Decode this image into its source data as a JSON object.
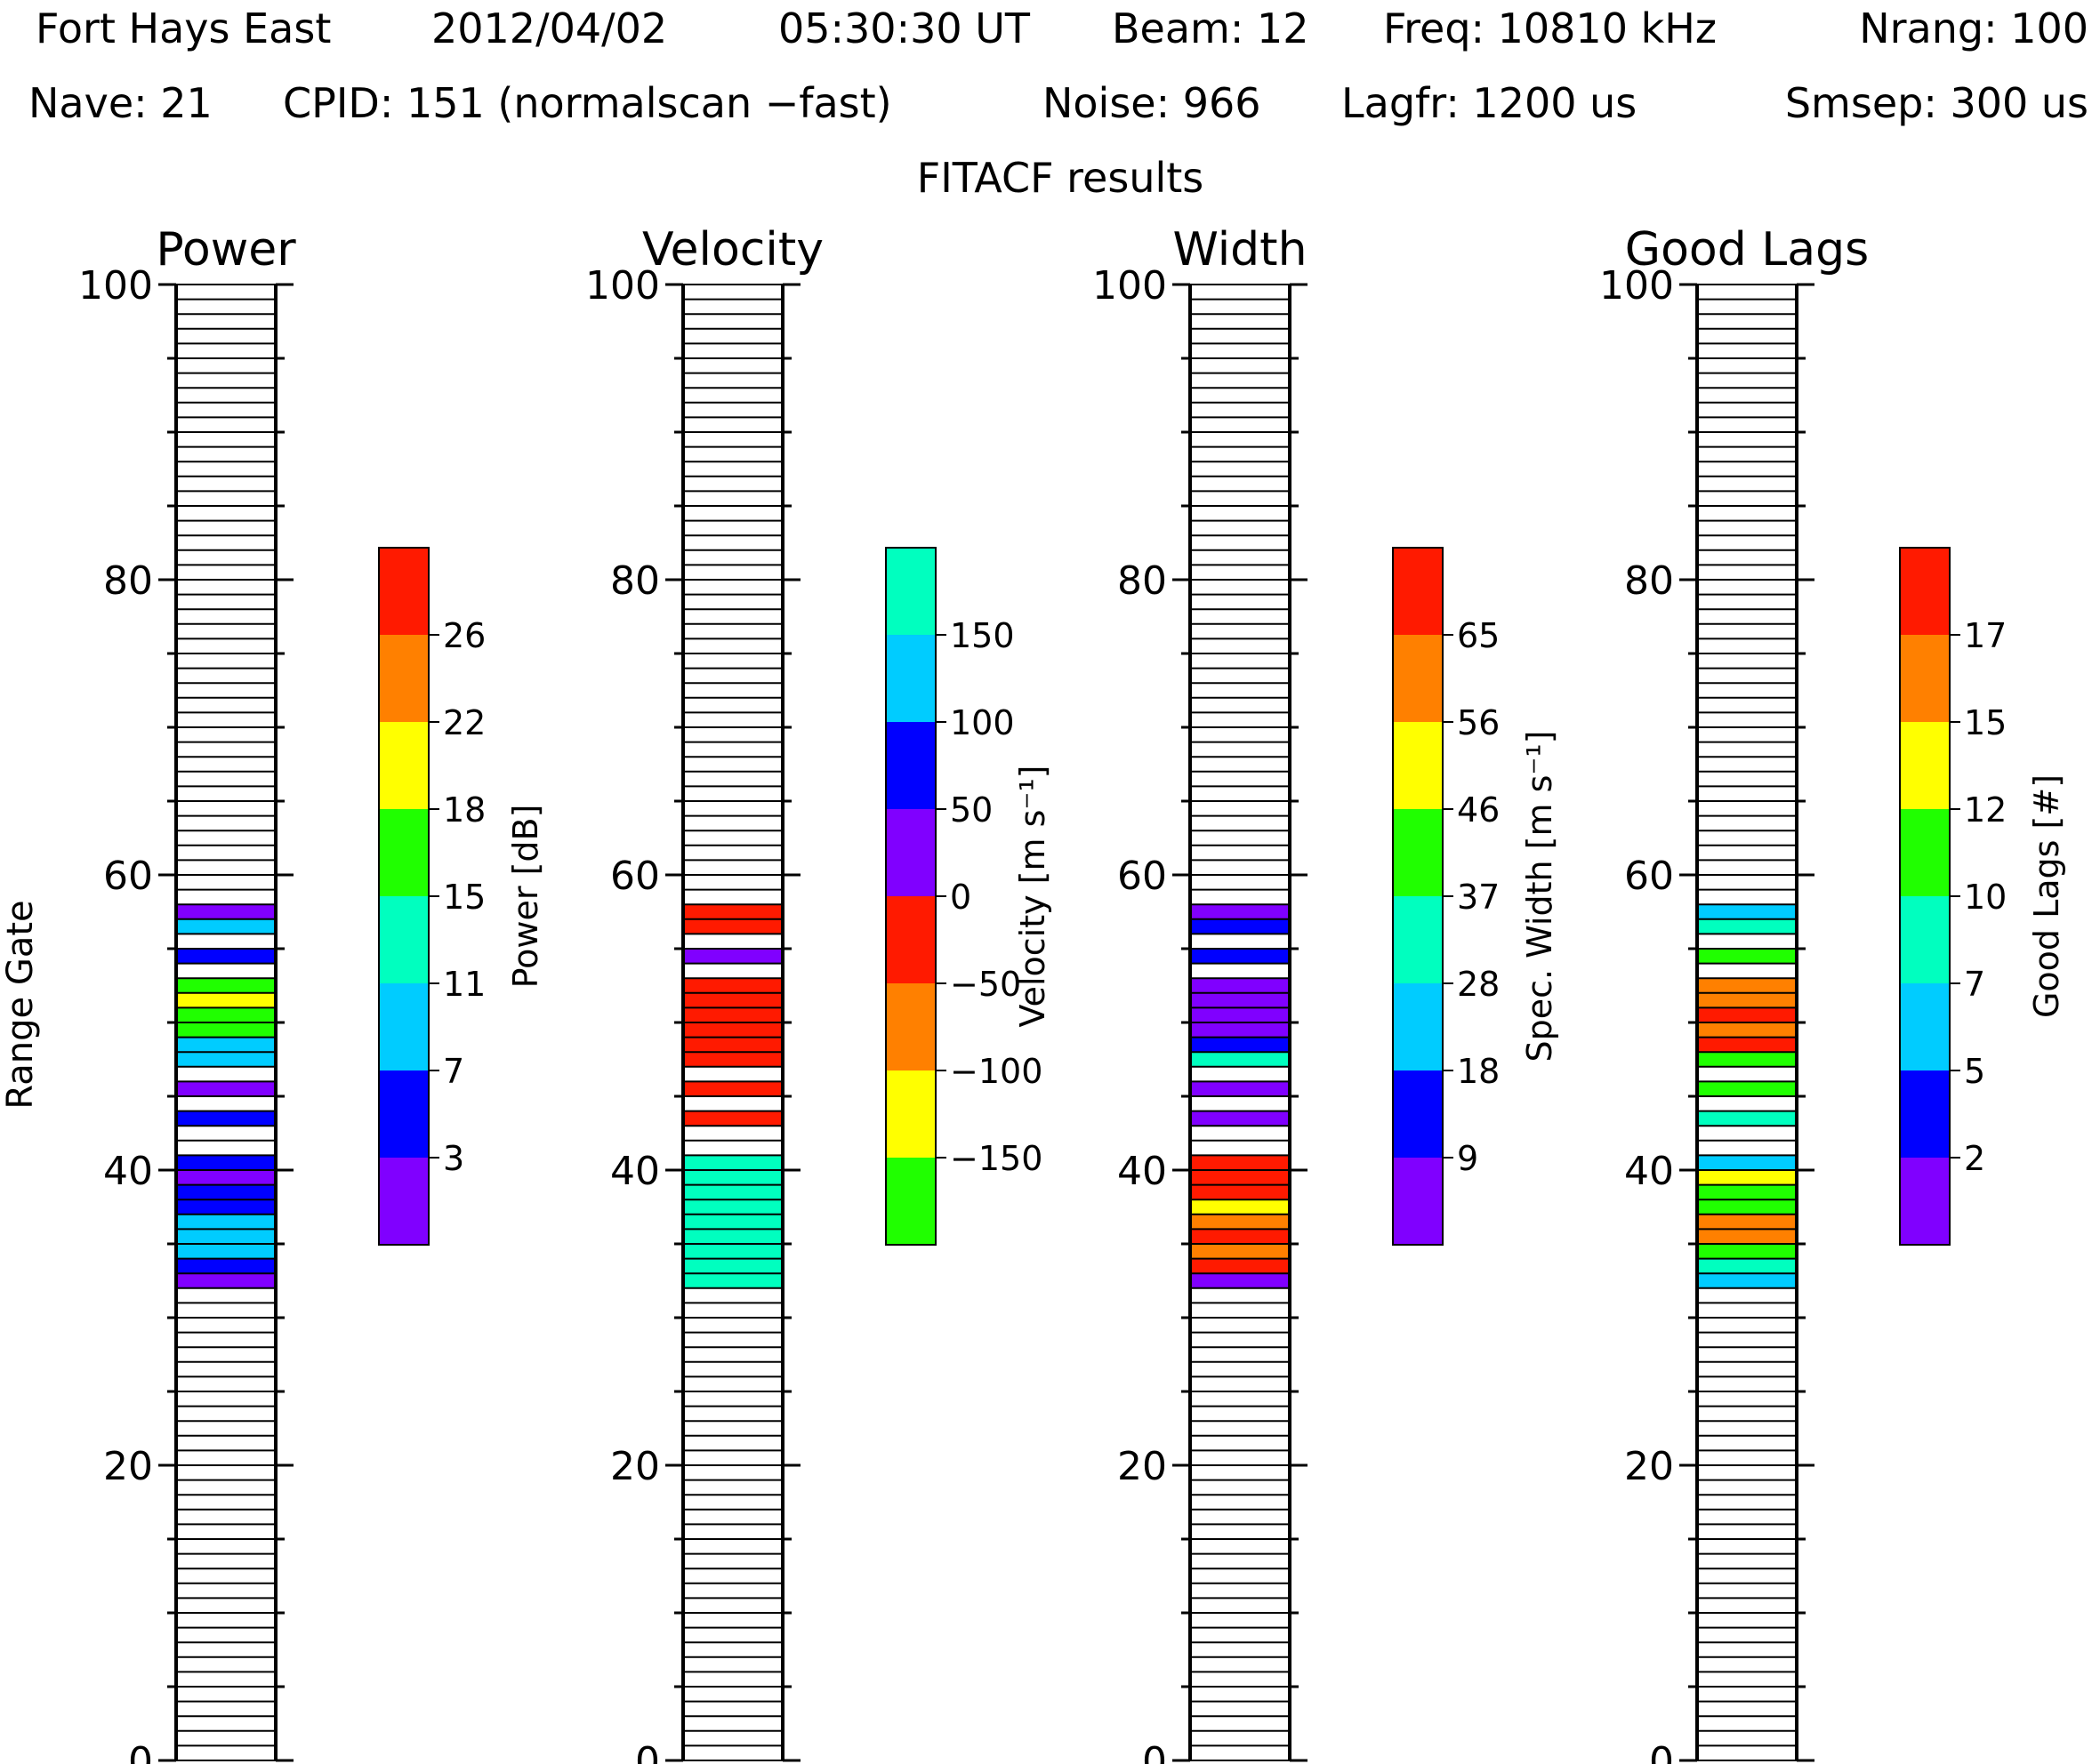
{
  "header": {
    "line1": {
      "station": "Fort Hays East",
      "date": "2012/04/02",
      "time": "05:30:30 UT",
      "beam": "Beam: 12",
      "freq": "Freq: 10810 kHz",
      "nrang": "Nrang: 100"
    },
    "line2": {
      "nave": "Nave: 21",
      "cpid": "CPID: 151 (normalscan −fast)",
      "noise": "Noise: 966",
      "lagfr": "Lagfr: 1200 us",
      "smsep": "Smsep: 300 us"
    },
    "line3": "FITACF results"
  },
  "y_axis_label": "Range Gate",
  "y_tick_labels": [
    "0",
    "20",
    "40",
    "60",
    "80",
    "100"
  ],
  "colors": {
    "c0": "#8000ff",
    "c1": "#0000ff",
    "c2": "#00ccff",
    "c3": "#00ffbf",
    "c4": "#20ff00",
    "c5": "#ffff00",
    "c6": "#ff8000",
    "c7": "#ff1a00"
  },
  "chart_data": [
    {
      "type": "heatmap",
      "title": "Power",
      "ylim": [
        0,
        100
      ],
      "colorbar": {
        "label": "Power [dB]",
        "tick_labels": [
          "3",
          "7",
          "11",
          "15",
          "18",
          "22",
          "26"
        ],
        "colors": [
          "#8000ff",
          "#0000ff",
          "#00ccff",
          "#00ffbf",
          "#20ff00",
          "#ffff00",
          "#ff8000",
          "#ff1a00"
        ]
      },
      "gates": [
        {
          "gate": 33,
          "level": 0
        },
        {
          "gate": 34,
          "level": 1
        },
        {
          "gate": 35,
          "level": 2
        },
        {
          "gate": 36,
          "level": 2
        },
        {
          "gate": 37,
          "level": 2
        },
        {
          "gate": 38,
          "level": 1
        },
        {
          "gate": 39,
          "level": 1
        },
        {
          "gate": 40,
          "level": 0
        },
        {
          "gate": 41,
          "level": 1
        },
        {
          "gate": 44,
          "level": 1
        },
        {
          "gate": 46,
          "level": 0
        },
        {
          "gate": 48,
          "level": 2
        },
        {
          "gate": 49,
          "level": 2
        },
        {
          "gate": 50,
          "level": 4
        },
        {
          "gate": 51,
          "level": 4
        },
        {
          "gate": 52,
          "level": 5
        },
        {
          "gate": 53,
          "level": 4
        },
        {
          "gate": 55,
          "level": 1
        },
        {
          "gate": 57,
          "level": 2
        },
        {
          "gate": 58,
          "level": 0
        }
      ]
    },
    {
      "type": "heatmap",
      "title": "Velocity",
      "ylim": [
        0,
        100
      ],
      "colorbar": {
        "label": "Velocity [m s⁻¹]",
        "tick_labels": [
          "−150",
          "−100",
          "−50",
          "0",
          "50",
          "100",
          "150"
        ],
        "colors": [
          "#20ff00",
          "#ffff00",
          "#ff8000",
          "#ff1a00",
          "#8000ff",
          "#0000ff",
          "#00ccff",
          "#00ffbf"
        ]
      },
      "gates": [
        {
          "gate": 33,
          "level": 7
        },
        {
          "gate": 34,
          "level": 7
        },
        {
          "gate": 35,
          "level": 7
        },
        {
          "gate": 36,
          "level": 7
        },
        {
          "gate": 37,
          "level": 7
        },
        {
          "gate": 38,
          "level": 7
        },
        {
          "gate": 39,
          "level": 7
        },
        {
          "gate": 40,
          "level": 7
        },
        {
          "gate": 41,
          "level": 7
        },
        {
          "gate": 44,
          "level": 3
        },
        {
          "gate": 46,
          "level": 3
        },
        {
          "gate": 48,
          "level": 3
        },
        {
          "gate": 49,
          "level": 3
        },
        {
          "gate": 50,
          "level": 3
        },
        {
          "gate": 51,
          "level": 3
        },
        {
          "gate": 52,
          "level": 3
        },
        {
          "gate": 53,
          "level": 3
        },
        {
          "gate": 55,
          "level": 4
        },
        {
          "gate": 57,
          "level": 3
        },
        {
          "gate": 58,
          "level": 3
        }
      ]
    },
    {
      "type": "heatmap",
      "title": "Width",
      "ylim": [
        0,
        100
      ],
      "colorbar": {
        "label": "Spec. Width [m s⁻¹]",
        "tick_labels": [
          "9",
          "18",
          "28",
          "37",
          "46",
          "56",
          "65"
        ],
        "colors": [
          "#8000ff",
          "#0000ff",
          "#00ccff",
          "#00ffbf",
          "#20ff00",
          "#ffff00",
          "#ff8000",
          "#ff1a00"
        ]
      },
      "gates": [
        {
          "gate": 33,
          "level": 0
        },
        {
          "gate": 34,
          "level": 7
        },
        {
          "gate": 35,
          "level": 6
        },
        {
          "gate": 36,
          "level": 7
        },
        {
          "gate": 37,
          "level": 6
        },
        {
          "gate": 38,
          "level": 5
        },
        {
          "gate": 39,
          "level": 7
        },
        {
          "gate": 40,
          "level": 7
        },
        {
          "gate": 41,
          "level": 7
        },
        {
          "gate": 44,
          "level": 0
        },
        {
          "gate": 46,
          "level": 0
        },
        {
          "gate": 48,
          "level": 3
        },
        {
          "gate": 49,
          "level": 1
        },
        {
          "gate": 50,
          "level": 0
        },
        {
          "gate": 51,
          "level": 0
        },
        {
          "gate": 52,
          "level": 0
        },
        {
          "gate": 53,
          "level": 0
        },
        {
          "gate": 55,
          "level": 1
        },
        {
          "gate": 57,
          "level": 1
        },
        {
          "gate": 58,
          "level": 0
        }
      ]
    },
    {
      "type": "heatmap",
      "title": "Good Lags",
      "ylim": [
        0,
        100
      ],
      "colorbar": {
        "label": "Good Lags [#]",
        "tick_labels": [
          "2",
          "5",
          "7",
          "10",
          "12",
          "15",
          "17"
        ],
        "colors": [
          "#8000ff",
          "#0000ff",
          "#00ccff",
          "#00ffbf",
          "#20ff00",
          "#ffff00",
          "#ff8000",
          "#ff1a00"
        ]
      },
      "gates": [
        {
          "gate": 33,
          "level": 2
        },
        {
          "gate": 34,
          "level": 3
        },
        {
          "gate": 35,
          "level": 4
        },
        {
          "gate": 36,
          "level": 6
        },
        {
          "gate": 37,
          "level": 6
        },
        {
          "gate": 38,
          "level": 4
        },
        {
          "gate": 39,
          "level": 4
        },
        {
          "gate": 40,
          "level": 5
        },
        {
          "gate": 41,
          "level": 2
        },
        {
          "gate": 44,
          "level": 3
        },
        {
          "gate": 46,
          "level": 4
        },
        {
          "gate": 48,
          "level": 4
        },
        {
          "gate": 49,
          "level": 7
        },
        {
          "gate": 50,
          "level": 6
        },
        {
          "gate": 51,
          "level": 7
        },
        {
          "gate": 52,
          "level": 6
        },
        {
          "gate": 53,
          "level": 6
        },
        {
          "gate": 55,
          "level": 4
        },
        {
          "gate": 57,
          "level": 3
        },
        {
          "gate": 58,
          "level": 2
        }
      ]
    }
  ]
}
